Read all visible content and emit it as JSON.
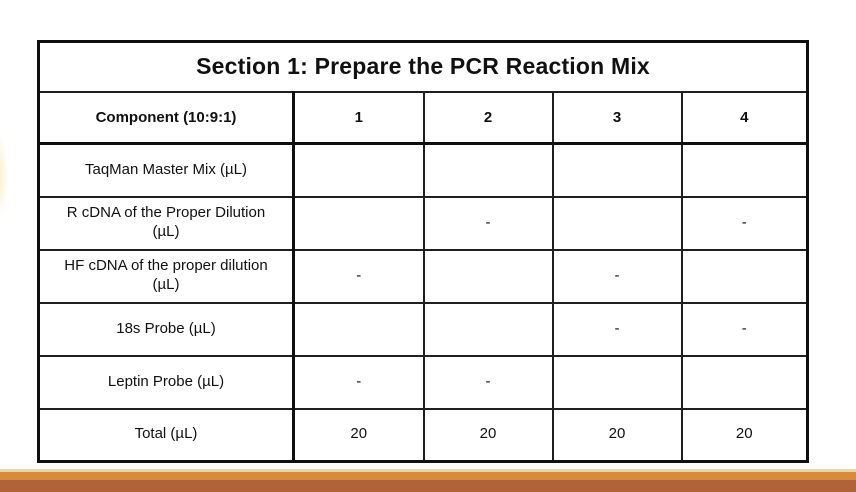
{
  "slide": {
    "background_color": "#FFFFFF"
  },
  "table": {
    "title": "Section 1: Prepare the PCR Reaction Mix",
    "columns": [
      "Component (10:9:1)",
      "1",
      "2",
      "3",
      "4"
    ],
    "rows": [
      {
        "label": "TaqMan Master Mix (µL)",
        "values": [
          "",
          "",
          "",
          ""
        ]
      },
      {
        "label": "R cDNA of the Proper Dilution (µL)",
        "values": [
          "",
          "-",
          "",
          "-"
        ]
      },
      {
        "label": "HF cDNA of the proper dilution (µL)",
        "values": [
          "-",
          "",
          "-",
          ""
        ]
      },
      {
        "label": "18s Probe (µL)",
        "values": [
          "",
          "",
          "-",
          "-"
        ]
      },
      {
        "label": "Leptin Probe (µL)",
        "values": [
          "-",
          "-",
          "",
          ""
        ]
      },
      {
        "label": "Total (µL)",
        "values": [
          "20",
          "20",
          "20",
          "20"
        ]
      }
    ]
  },
  "footer": {
    "stripe_colors": {
      "cream": "#E8D5A8",
      "orange": "#D98B3C",
      "brown": "#B06238"
    }
  },
  "colors": {
    "table_border": "#0F0F0F",
    "text": "#111111"
  }
}
